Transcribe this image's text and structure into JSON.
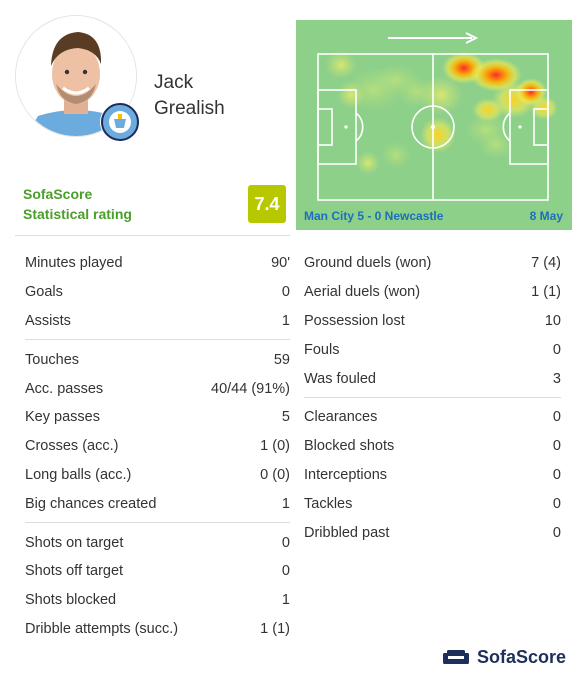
{
  "player": {
    "first_name": "Jack",
    "last_name": "Grealish"
  },
  "rating": {
    "label_line1": "SofaScore",
    "label_line2": "Statistical rating",
    "value": "7.4",
    "color": "#b7c800"
  },
  "match": {
    "label": "Man City 5 - 0 Newcastle",
    "date": "8 May"
  },
  "stats_left": [
    [
      {
        "label": "Minutes played",
        "value": "90'"
      },
      {
        "label": "Goals",
        "value": "0"
      },
      {
        "label": "Assists",
        "value": "1"
      }
    ],
    [
      {
        "label": "Touches",
        "value": "59"
      },
      {
        "label": "Acc. passes",
        "value": "40/44 (91%)"
      },
      {
        "label": "Key passes",
        "value": "5"
      },
      {
        "label": "Crosses (acc.)",
        "value": "1 (0)"
      },
      {
        "label": "Long balls (acc.)",
        "value": "0 (0)"
      },
      {
        "label": "Big chances created",
        "value": "1"
      }
    ],
    [
      {
        "label": "Shots on target",
        "value": "0"
      },
      {
        "label": "Shots off target",
        "value": "0"
      },
      {
        "label": "Shots blocked",
        "value": "1"
      },
      {
        "label": "Dribble attempts (succ.)",
        "value": "1 (1)"
      }
    ]
  ],
  "stats_right": [
    [
      {
        "label": "Ground duels (won)",
        "value": "7 (4)"
      },
      {
        "label": "Aerial duels (won)",
        "value": "1 (1)"
      },
      {
        "label": "Possession lost",
        "value": "10"
      },
      {
        "label": "Fouls",
        "value": "0"
      },
      {
        "label": "Was fouled",
        "value": "3"
      }
    ],
    [
      {
        "label": "Clearances",
        "value": "0"
      },
      {
        "label": "Blocked shots",
        "value": "0"
      },
      {
        "label": "Interceptions",
        "value": "0"
      },
      {
        "label": "Tackles",
        "value": "0"
      },
      {
        "label": "Dribbled past",
        "value": "0"
      }
    ]
  ],
  "footer": {
    "brand": "SofaScore"
  },
  "colors": {
    "brand_green": "#4a9e2b",
    "link_blue": "#1d6fb8",
    "pitch": "#8dd08a"
  }
}
